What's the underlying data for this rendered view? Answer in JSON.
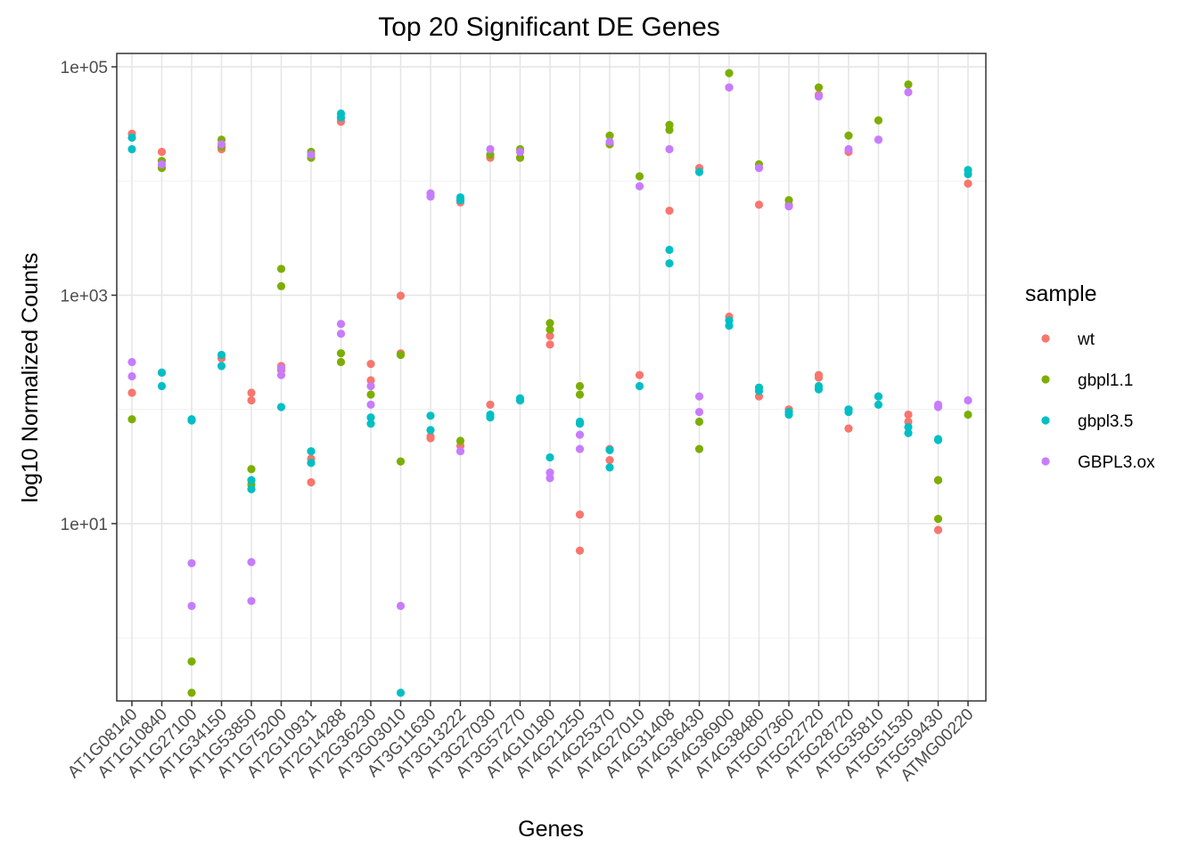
{
  "chart_data": {
    "type": "scatter",
    "title": "Top 20 Significant DE Genes",
    "xlabel": "Genes",
    "ylabel": "log10 Normalized Counts",
    "y_scale": "log10",
    "ylim": [
      0.28,
      131000
    ],
    "yticks": [
      {
        "value": 10,
        "label": "1e+01"
      },
      {
        "value": 1000,
        "label": "1e+03"
      },
      {
        "value": 100000,
        "label": "1e+05"
      }
    ],
    "grid": true,
    "legend": {
      "title": "sample",
      "position": "right"
    },
    "categories": [
      "AT1G08140",
      "AT1G10840",
      "AT1G27100",
      "AT1G34150",
      "AT1G53850",
      "AT1G75200",
      "AT2G10931",
      "AT2G14288",
      "AT2G36230",
      "AT3G03010",
      "AT3G11630",
      "AT3G13222",
      "AT3G27030",
      "AT3G57270",
      "AT4G10180",
      "AT4G21250",
      "AT4G25370",
      "AT4G27010",
      "AT4G31408",
      "AT4G36430",
      "AT4G36900",
      "AT4G38480",
      "AT5G07360",
      "AT5G22720",
      "AT5G28720",
      "AT5G35810",
      "AT5G51530",
      "AT5G59430",
      "ATMG00220"
    ],
    "series": [
      {
        "name": "wt",
        "color": "#F8766D",
        "points": [
          [
            0,
            26000
          ],
          [
            0,
            140
          ],
          [
            1,
            18000
          ],
          [
            1,
            210
          ],
          [
            3,
            19000
          ],
          [
            3,
            280
          ],
          [
            4,
            140
          ],
          [
            4,
            120
          ],
          [
            5,
            240
          ],
          [
            5,
            220
          ],
          [
            6,
            37
          ],
          [
            6,
            23
          ],
          [
            7,
            35000
          ],
          [
            7,
            33000
          ],
          [
            8,
            250
          ],
          [
            8,
            180
          ],
          [
            9,
            990
          ],
          [
            9,
            310
          ],
          [
            10,
            56
          ],
          [
            10,
            58
          ],
          [
            11,
            48
          ],
          [
            11,
            6500
          ],
          [
            12,
            110
          ],
          [
            12,
            16000
          ],
          [
            13,
            120
          ],
          [
            13,
            16000
          ],
          [
            14,
            440
          ],
          [
            14,
            370
          ],
          [
            15,
            12
          ],
          [
            15,
            5.8
          ],
          [
            16,
            45
          ],
          [
            16,
            36
          ],
          [
            17,
            200
          ],
          [
            18,
            5500
          ],
          [
            19,
            13000
          ],
          [
            20,
            650
          ],
          [
            20,
            66000
          ],
          [
            21,
            130
          ],
          [
            21,
            6200
          ],
          [
            22,
            100
          ],
          [
            22,
            6200
          ],
          [
            23,
            200
          ],
          [
            23,
            190
          ],
          [
            23,
            57000
          ],
          [
            24,
            68
          ],
          [
            24,
            18000
          ],
          [
            25,
            130
          ],
          [
            25,
            23000
          ],
          [
            26,
            90
          ],
          [
            26,
            78
          ],
          [
            27,
            8.8
          ],
          [
            27,
            24
          ],
          [
            28,
            9500
          ]
        ]
      },
      {
        "name": "gbpl1.1",
        "color": "#7CAE00",
        "points": [
          [
            0,
            82
          ],
          [
            1,
            15000
          ],
          [
            1,
            13000
          ],
          [
            2,
            0.62
          ],
          [
            2,
            0.33
          ],
          [
            3,
            23000
          ],
          [
            3,
            20000
          ],
          [
            4,
            30
          ],
          [
            4,
            22
          ],
          [
            5,
            1700
          ],
          [
            5,
            1200
          ],
          [
            6,
            18000
          ],
          [
            6,
            16000
          ],
          [
            7,
            310
          ],
          [
            7,
            260
          ],
          [
            8,
            135
          ],
          [
            9,
            300
          ],
          [
            9,
            35
          ],
          [
            11,
            53
          ],
          [
            12,
            17000
          ],
          [
            13,
            19000
          ],
          [
            13,
            16000
          ],
          [
            14,
            570
          ],
          [
            14,
            500
          ],
          [
            15,
            160
          ],
          [
            15,
            135
          ],
          [
            16,
            25000
          ],
          [
            16,
            21000
          ],
          [
            17,
            11000
          ],
          [
            18,
            31000
          ],
          [
            18,
            28000
          ],
          [
            19,
            78
          ],
          [
            19,
            45
          ],
          [
            20,
            88000
          ],
          [
            21,
            14000
          ],
          [
            22,
            6800
          ],
          [
            23,
            66000
          ],
          [
            24,
            25000
          ],
          [
            25,
            34000
          ],
          [
            26,
            70000
          ],
          [
            27,
            24
          ],
          [
            27,
            11
          ],
          [
            28,
            90
          ]
        ]
      },
      {
        "name": "gbpl3.5",
        "color": "#00BFC4",
        "points": [
          [
            0,
            24000
          ],
          [
            0,
            19000
          ],
          [
            1,
            210
          ],
          [
            1,
            160
          ],
          [
            2,
            82
          ],
          [
            2,
            80
          ],
          [
            3,
            300
          ],
          [
            3,
            240
          ],
          [
            4,
            24
          ],
          [
            4,
            20
          ],
          [
            5,
            105
          ],
          [
            6,
            43
          ],
          [
            6,
            34
          ],
          [
            7,
            39000
          ],
          [
            7,
            36000
          ],
          [
            8,
            85
          ],
          [
            8,
            75
          ],
          [
            9,
            0.33
          ],
          [
            10,
            88
          ],
          [
            10,
            66
          ],
          [
            11,
            7200
          ],
          [
            11,
            6800
          ],
          [
            12,
            90
          ],
          [
            12,
            85
          ],
          [
            13,
            125
          ],
          [
            13,
            120
          ],
          [
            14,
            38
          ],
          [
            15,
            78
          ],
          [
            15,
            75
          ],
          [
            16,
            44
          ],
          [
            16,
            31
          ],
          [
            17,
            160
          ],
          [
            18,
            2500
          ],
          [
            18,
            1900
          ],
          [
            19,
            12000
          ],
          [
            20,
            600
          ],
          [
            20,
            540
          ],
          [
            21,
            155
          ],
          [
            21,
            145
          ],
          [
            22,
            95
          ],
          [
            22,
            90
          ],
          [
            23,
            160
          ],
          [
            23,
            150
          ],
          [
            24,
            100
          ],
          [
            24,
            95
          ],
          [
            25,
            130
          ],
          [
            25,
            110
          ],
          [
            26,
            70
          ],
          [
            26,
            62
          ],
          [
            27,
            55
          ],
          [
            27,
            54
          ],
          [
            28,
            12500
          ],
          [
            28,
            11500
          ]
        ]
      },
      {
        "name": "GBPL3.ox",
        "color": "#C77CFF",
        "points": [
          [
            0,
            260
          ],
          [
            0,
            195
          ],
          [
            1,
            14000
          ],
          [
            2,
            4.5
          ],
          [
            2,
            1.9
          ],
          [
            3,
            21000
          ],
          [
            4,
            4.6
          ],
          [
            4,
            2.1
          ],
          [
            5,
            230
          ],
          [
            5,
            200
          ],
          [
            6,
            17000
          ],
          [
            7,
            560
          ],
          [
            7,
            460
          ],
          [
            8,
            160
          ],
          [
            8,
            110
          ],
          [
            9,
            1.9
          ],
          [
            10,
            7800
          ],
          [
            10,
            7300
          ],
          [
            11,
            43
          ],
          [
            12,
            19000
          ],
          [
            13,
            18000
          ],
          [
            14,
            28
          ],
          [
            14,
            25
          ],
          [
            15,
            60
          ],
          [
            15,
            45
          ],
          [
            16,
            22000
          ],
          [
            17,
            9000
          ],
          [
            18,
            19000
          ],
          [
            19,
            130
          ],
          [
            19,
            95
          ],
          [
            20,
            66000
          ],
          [
            21,
            13000
          ],
          [
            22,
            6000
          ],
          [
            23,
            55000
          ],
          [
            24,
            19000
          ],
          [
            25,
            23000
          ],
          [
            26,
            60000
          ],
          [
            27,
            110
          ],
          [
            27,
            105
          ],
          [
            28,
            120
          ]
        ]
      }
    ]
  }
}
